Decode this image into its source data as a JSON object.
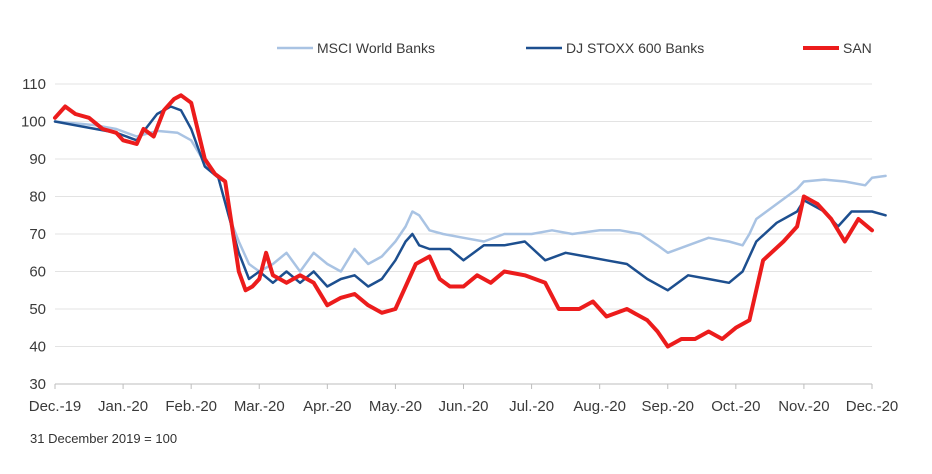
{
  "chart_data": {
    "type": "line",
    "title": "",
    "xlabel": "",
    "ylabel": "",
    "ylim": [
      30,
      110
    ],
    "yticks": [
      30,
      40,
      50,
      60,
      70,
      80,
      90,
      100,
      110
    ],
    "x_tick_labels": [
      "Dec.-19",
      "Jan.-20",
      "Feb.-20",
      "Mar.-20",
      "Apr.-20",
      "May.-20",
      "Jun.-20",
      "Jul.-20",
      "Aug.-20",
      "Sep.-20",
      "Oct.-20",
      "Nov.-20",
      "Dec.-20"
    ],
    "grid": "horizontal",
    "legend_position": "top",
    "x_unit": "months since 31 December 2019",
    "series": [
      {
        "name": "MSCI World Banks",
        "color": "#a9c3e3",
        "points": [
          [
            0,
            100
          ],
          [
            0.3,
            99.5
          ],
          [
            0.6,
            99
          ],
          [
            0.9,
            98
          ],
          [
            1.2,
            96
          ],
          [
            1.5,
            97.5
          ],
          [
            1.8,
            97
          ],
          [
            2.0,
            95
          ],
          [
            2.2,
            89
          ],
          [
            2.4,
            85
          ],
          [
            2.55,
            75
          ],
          [
            2.7,
            68
          ],
          [
            2.85,
            62
          ],
          [
            3.0,
            60
          ],
          [
            3.2,
            62
          ],
          [
            3.4,
            65
          ],
          [
            3.6,
            60
          ],
          [
            3.8,
            65
          ],
          [
            4.0,
            62
          ],
          [
            4.2,
            60
          ],
          [
            4.4,
            66
          ],
          [
            4.6,
            62
          ],
          [
            4.8,
            64
          ],
          [
            5.0,
            68
          ],
          [
            5.15,
            72
          ],
          [
            5.25,
            76
          ],
          [
            5.35,
            75
          ],
          [
            5.5,
            71
          ],
          [
            5.7,
            70
          ],
          [
            6.0,
            69
          ],
          [
            6.3,
            68
          ],
          [
            6.6,
            70
          ],
          [
            7.0,
            70
          ],
          [
            7.3,
            71
          ],
          [
            7.6,
            70
          ],
          [
            8.0,
            71
          ],
          [
            8.3,
            71
          ],
          [
            8.6,
            70
          ],
          [
            8.85,
            67
          ],
          [
            9.0,
            65
          ],
          [
            9.3,
            67
          ],
          [
            9.6,
            69
          ],
          [
            9.9,
            68
          ],
          [
            10.1,
            67
          ],
          [
            10.2,
            70
          ],
          [
            10.3,
            74
          ],
          [
            10.6,
            78
          ],
          [
            10.9,
            82
          ],
          [
            11.0,
            84
          ],
          [
            11.3,
            84.5
          ],
          [
            11.6,
            84
          ],
          [
            11.9,
            83
          ],
          [
            12.0,
            85
          ],
          [
            12.2,
            85.5
          ]
        ]
      },
      {
        "name": "DJ STOXX 600 Banks",
        "color": "#1d4f8f",
        "points": [
          [
            0,
            100
          ],
          [
            0.3,
            99
          ],
          [
            0.6,
            98
          ],
          [
            0.9,
            97
          ],
          [
            1.2,
            95
          ],
          [
            1.5,
            102
          ],
          [
            1.7,
            104
          ],
          [
            1.85,
            103
          ],
          [
            2.0,
            98
          ],
          [
            2.2,
            88
          ],
          [
            2.4,
            85
          ],
          [
            2.55,
            75
          ],
          [
            2.7,
            65
          ],
          [
            2.85,
            58
          ],
          [
            3.0,
            60
          ],
          [
            3.2,
            57
          ],
          [
            3.4,
            60
          ],
          [
            3.6,
            57
          ],
          [
            3.8,
            60
          ],
          [
            4.0,
            56
          ],
          [
            4.2,
            58
          ],
          [
            4.4,
            59
          ],
          [
            4.6,
            56
          ],
          [
            4.8,
            58
          ],
          [
            5.0,
            63
          ],
          [
            5.15,
            68
          ],
          [
            5.25,
            70
          ],
          [
            5.35,
            67
          ],
          [
            5.5,
            66
          ],
          [
            5.8,
            66
          ],
          [
            6.0,
            63
          ],
          [
            6.3,
            67
          ],
          [
            6.6,
            67
          ],
          [
            6.9,
            68
          ],
          [
            7.2,
            63
          ],
          [
            7.5,
            65
          ],
          [
            7.8,
            64
          ],
          [
            8.1,
            63
          ],
          [
            8.4,
            62
          ],
          [
            8.7,
            58
          ],
          [
            9.0,
            55
          ],
          [
            9.3,
            59
          ],
          [
            9.6,
            58
          ],
          [
            9.9,
            57
          ],
          [
            10.1,
            60
          ],
          [
            10.3,
            68
          ],
          [
            10.6,
            73
          ],
          [
            10.9,
            76
          ],
          [
            11.0,
            79
          ],
          [
            11.3,
            76
          ],
          [
            11.5,
            72
          ],
          [
            11.7,
            76
          ],
          [
            11.9,
            76
          ],
          [
            12.0,
            76
          ],
          [
            12.2,
            75
          ]
        ]
      },
      {
        "name": "SAN",
        "color": "#ec1c1c",
        "points": [
          [
            0,
            101
          ],
          [
            0.15,
            104
          ],
          [
            0.3,
            102
          ],
          [
            0.5,
            101
          ],
          [
            0.7,
            98
          ],
          [
            0.9,
            97
          ],
          [
            1.0,
            95
          ],
          [
            1.2,
            94
          ],
          [
            1.3,
            98
          ],
          [
            1.45,
            96
          ],
          [
            1.6,
            103
          ],
          [
            1.75,
            106
          ],
          [
            1.85,
            107
          ],
          [
            2.0,
            105
          ],
          [
            2.2,
            90
          ],
          [
            2.35,
            86
          ],
          [
            2.5,
            84
          ],
          [
            2.6,
            72
          ],
          [
            2.7,
            60
          ],
          [
            2.8,
            55
          ],
          [
            2.9,
            56
          ],
          [
            3.0,
            58
          ],
          [
            3.1,
            65
          ],
          [
            3.2,
            59
          ],
          [
            3.4,
            57
          ],
          [
            3.6,
            59
          ],
          [
            3.8,
            57
          ],
          [
            4.0,
            51
          ],
          [
            4.2,
            53
          ],
          [
            4.4,
            54
          ],
          [
            4.6,
            51
          ],
          [
            4.8,
            49
          ],
          [
            5.0,
            50
          ],
          [
            5.15,
            56
          ],
          [
            5.3,
            62
          ],
          [
            5.5,
            64
          ],
          [
            5.65,
            58
          ],
          [
            5.8,
            56
          ],
          [
            6.0,
            56
          ],
          [
            6.2,
            59
          ],
          [
            6.4,
            57
          ],
          [
            6.6,
            60
          ],
          [
            6.9,
            59
          ],
          [
            7.2,
            57
          ],
          [
            7.4,
            50
          ],
          [
            7.7,
            50
          ],
          [
            7.9,
            52
          ],
          [
            8.1,
            48
          ],
          [
            8.4,
            50
          ],
          [
            8.7,
            47
          ],
          [
            8.85,
            44
          ],
          [
            9.0,
            40
          ],
          [
            9.2,
            42
          ],
          [
            9.4,
            42
          ],
          [
            9.6,
            44
          ],
          [
            9.8,
            42
          ],
          [
            10.0,
            45
          ],
          [
            10.2,
            47
          ],
          [
            10.4,
            63
          ],
          [
            10.7,
            68
          ],
          [
            10.9,
            72
          ],
          [
            11.0,
            80
          ],
          [
            11.2,
            78
          ],
          [
            11.4,
            74
          ],
          [
            11.6,
            68
          ],
          [
            11.8,
            74
          ],
          [
            12.0,
            71
          ]
        ]
      }
    ]
  },
  "footnote": "31 December 2019 = 100"
}
